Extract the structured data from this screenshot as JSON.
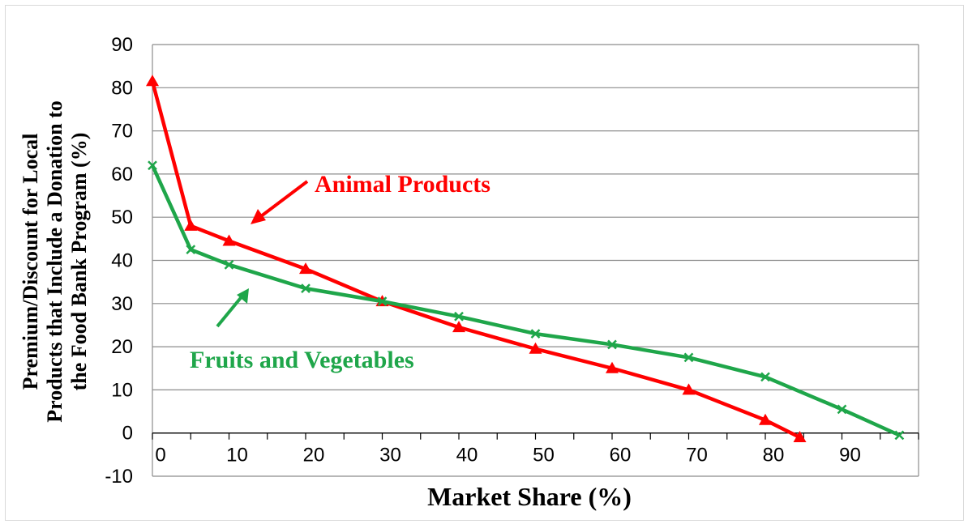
{
  "chart_data": {
    "type": "line",
    "xlabel": "Market Share (%)",
    "ylabel_lines": [
      "Premium/Discount  for Local",
      "Products that Include a Donation to",
      "the Food Bank Program (%)"
    ],
    "xlim": [
      0,
      100
    ],
    "ylim": [
      -10,
      90
    ],
    "x_ticks": [
      0,
      10,
      20,
      30,
      40,
      50,
      60,
      70,
      80,
      90
    ],
    "y_ticks": [
      -10,
      0,
      10,
      20,
      30,
      40,
      50,
      60,
      70,
      80,
      90
    ],
    "grid": "horizontal",
    "series": [
      {
        "name": "Animal Products",
        "color": "#ff0000",
        "marker": "triangle",
        "x": [
          0,
          5,
          10,
          20,
          30,
          40,
          50,
          60,
          70,
          80,
          84.5
        ],
        "y": [
          81.5,
          48,
          44.5,
          38,
          30.5,
          24.5,
          19.5,
          15,
          10,
          3,
          -1
        ]
      },
      {
        "name": "Fruits and Vegetables",
        "color": "#1fa64a",
        "marker": "x",
        "x": [
          0,
          5,
          10,
          20,
          30,
          40,
          50,
          60,
          70,
          80,
          90,
          97.5
        ],
        "y": [
          62,
          42.5,
          39,
          33.5,
          30.5,
          27,
          23,
          20.5,
          17.5,
          13,
          5.5,
          -0.5
        ]
      }
    ]
  }
}
